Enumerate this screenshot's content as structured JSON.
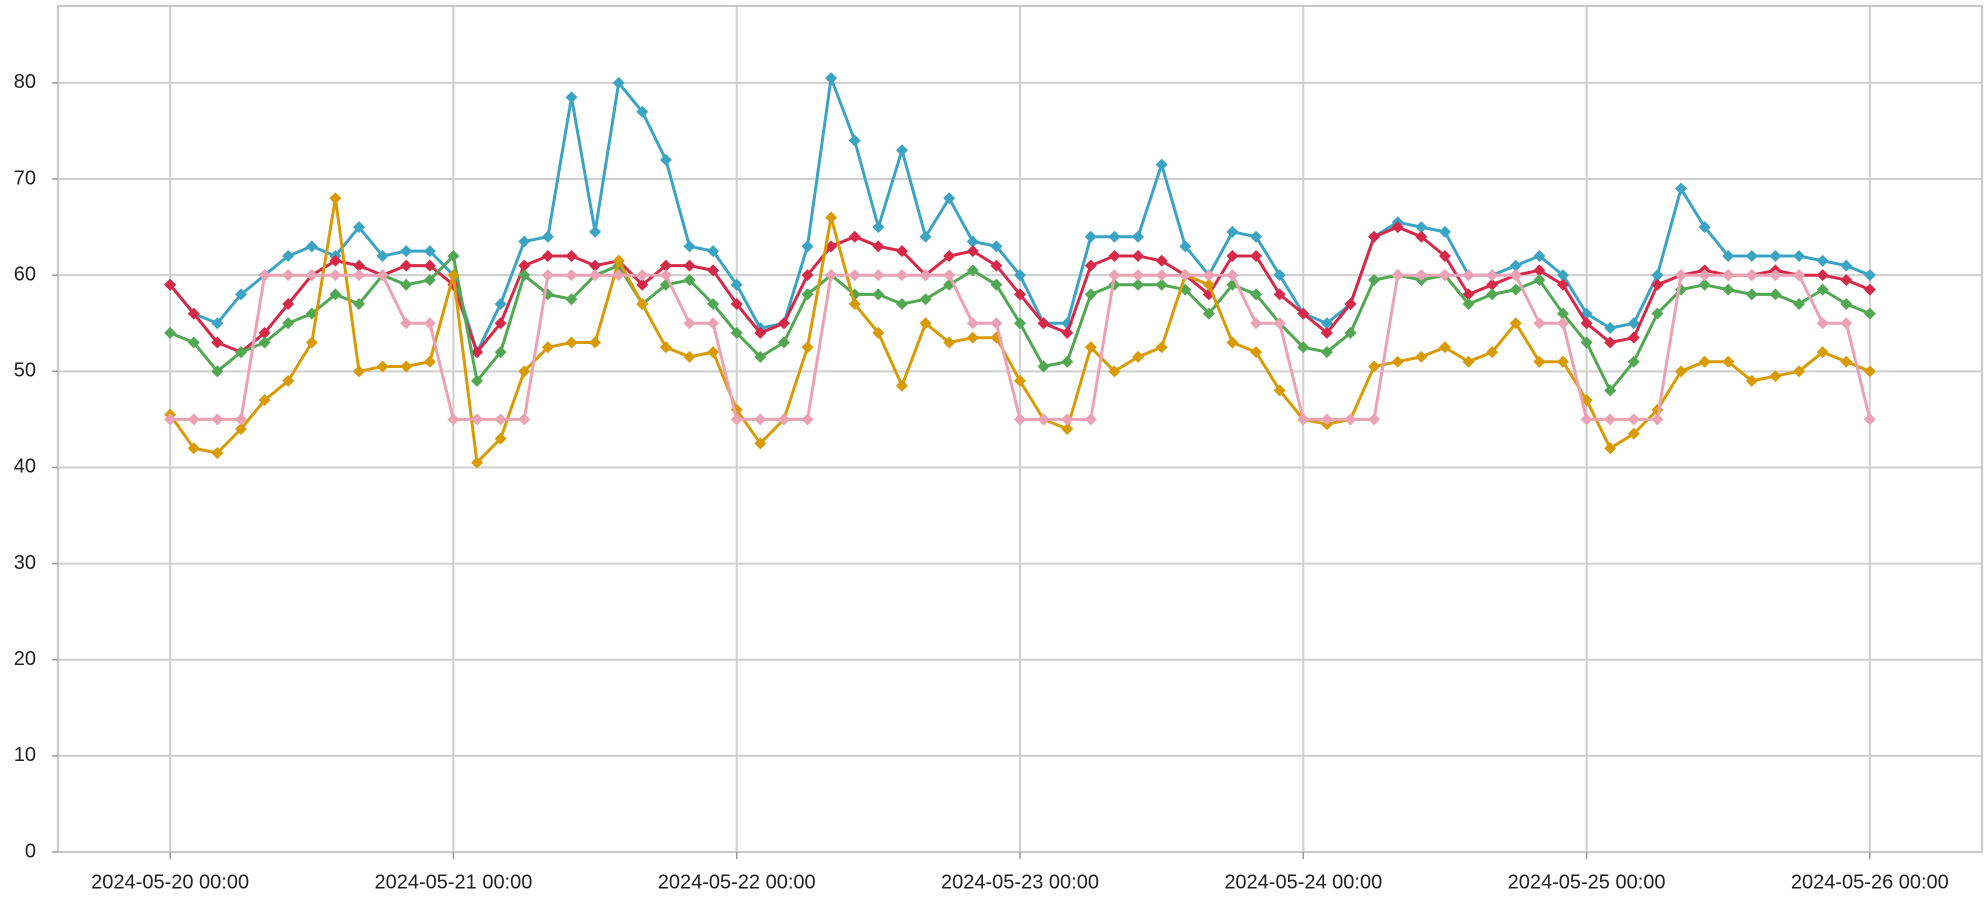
{
  "chart_data": {
    "type": "line",
    "x": [
      "2024-05-20 00:00",
      "2024-05-20 02:00",
      "2024-05-20 04:00",
      "2024-05-20 06:00",
      "2024-05-20 08:00",
      "2024-05-20 10:00",
      "2024-05-20 12:00",
      "2024-05-20 14:00",
      "2024-05-20 16:00",
      "2024-05-20 18:00",
      "2024-05-20 20:00",
      "2024-05-20 22:00",
      "2024-05-21 00:00",
      "2024-05-21 02:00",
      "2024-05-21 04:00",
      "2024-05-21 06:00",
      "2024-05-21 08:00",
      "2024-05-21 10:00",
      "2024-05-21 12:00",
      "2024-05-21 14:00",
      "2024-05-21 16:00",
      "2024-05-21 18:00",
      "2024-05-21 20:00",
      "2024-05-21 22:00",
      "2024-05-22 00:00",
      "2024-05-22 02:00",
      "2024-05-22 04:00",
      "2024-05-22 06:00",
      "2024-05-22 08:00",
      "2024-05-22 10:00",
      "2024-05-22 12:00",
      "2024-05-22 14:00",
      "2024-05-22 16:00",
      "2024-05-22 18:00",
      "2024-05-22 20:00",
      "2024-05-22 22:00",
      "2024-05-23 00:00",
      "2024-05-23 02:00",
      "2024-05-23 04:00",
      "2024-05-23 06:00",
      "2024-05-23 08:00",
      "2024-05-23 10:00",
      "2024-05-23 12:00",
      "2024-05-23 14:00",
      "2024-05-23 16:00",
      "2024-05-23 18:00",
      "2024-05-23 20:00",
      "2024-05-23 22:00",
      "2024-05-24 00:00",
      "2024-05-24 02:00",
      "2024-05-24 04:00",
      "2024-05-24 06:00",
      "2024-05-24 08:00",
      "2024-05-24 10:00",
      "2024-05-24 12:00",
      "2024-05-24 14:00",
      "2024-05-24 16:00",
      "2024-05-24 18:00",
      "2024-05-24 20:00",
      "2024-05-24 22:00",
      "2024-05-25 00:00",
      "2024-05-25 02:00",
      "2024-05-25 04:00",
      "2024-05-25 06:00",
      "2024-05-25 08:00",
      "2024-05-25 10:00",
      "2024-05-25 12:00",
      "2024-05-25 14:00",
      "2024-05-25 16:00",
      "2024-05-25 18:00",
      "2024-05-25 20:00",
      "2024-05-25 22:00",
      "2024-05-26 00:00"
    ],
    "series": [
      {
        "color": "#3ba3c3",
        "values": [
          59,
          56,
          55,
          58,
          60,
          62,
          63,
          62,
          65,
          62,
          62.5,
          62.5,
          60,
          52,
          57,
          63.5,
          64,
          78.5,
          64.5,
          80,
          77,
          72,
          63,
          62.5,
          59,
          54.5,
          55,
          63,
          80.5,
          74,
          65,
          73,
          64,
          68,
          63.5,
          63,
          60,
          55,
          55,
          64,
          64,
          64,
          71.5,
          63,
          60,
          64.5,
          64,
          60,
          56,
          55,
          57,
          64,
          65.5,
          65,
          64.5,
          60,
          60,
          61,
          62,
          60,
          56,
          54.5,
          55,
          60,
          69,
          65,
          62,
          62,
          62,
          62,
          61.5,
          61,
          60
        ]
      },
      {
        "color": "#d6294a",
        "values": [
          59,
          56,
          53,
          52,
          54,
          57,
          60,
          61.5,
          61,
          60,
          61,
          61,
          59,
          52,
          55,
          61,
          62,
          62,
          61,
          61.5,
          59,
          61,
          61,
          60.5,
          57,
          54,
          55,
          60,
          63,
          64,
          63,
          62.5,
          60,
          62,
          62.5,
          61,
          58,
          55,
          54,
          61,
          62,
          62,
          61.5,
          60,
          58,
          62,
          62,
          58,
          56,
          54,
          57,
          64,
          65,
          64,
          62,
          58,
          59,
          60,
          60.5,
          59,
          55,
          53,
          53.5,
          59,
          60,
          60.5,
          60,
          60,
          60.5,
          60,
          60,
          59.5,
          58.5
        ]
      },
      {
        "color": "#52a852",
        "values": [
          54,
          53,
          50,
          52,
          53,
          55,
          56,
          58,
          57,
          60,
          59,
          59.5,
          62,
          49,
          52,
          60,
          58,
          57.5,
          60,
          61,
          57,
          59,
          59.5,
          57,
          54,
          51.5,
          53,
          58,
          60,
          58,
          58,
          57,
          57.5,
          59,
          60.5,
          59,
          55,
          50.5,
          51,
          58,
          59,
          59,
          59,
          58.5,
          56,
          59,
          58,
          55,
          52.5,
          52,
          54,
          59.5,
          60,
          59.5,
          60,
          57,
          58,
          58.5,
          59.5,
          56,
          53,
          48,
          51,
          56,
          58.5,
          59,
          58.5,
          58,
          58,
          57,
          58.5,
          57,
          56
        ]
      },
      {
        "color": "#d89b06",
        "values": [
          45.5,
          42,
          41.5,
          44,
          47,
          49,
          53,
          68,
          50,
          50.5,
          50.5,
          51,
          60,
          40.5,
          43,
          50,
          52.5,
          53,
          53,
          61.5,
          57,
          52.5,
          51.5,
          52,
          46,
          42.5,
          45,
          52.5,
          66,
          57,
          54,
          48.5,
          55,
          53,
          53.5,
          53.5,
          49,
          45,
          44,
          52.5,
          50,
          51.5,
          52.5,
          60,
          59,
          53,
          52,
          48,
          45,
          44.5,
          45,
          50.5,
          51,
          51.5,
          52.5,
          51,
          52,
          55,
          51,
          51,
          47,
          42,
          43.5,
          46,
          50,
          51,
          51,
          49,
          49.5,
          50,
          52,
          51,
          50
        ]
      },
      {
        "color": "#eaa2b4",
        "values": [
          45,
          45,
          45,
          45,
          60,
          60,
          60,
          60,
          60,
          60,
          55,
          55,
          45,
          45,
          45,
          45,
          60,
          60,
          60,
          60,
          60,
          60,
          55,
          55,
          45,
          45,
          45,
          45,
          60,
          60,
          60,
          60,
          60,
          60,
          55,
          55,
          45,
          45,
          45,
          45,
          60,
          60,
          60,
          60,
          60,
          60,
          55,
          55,
          45,
          45,
          45,
          45,
          60,
          60,
          60,
          60,
          60,
          60,
          55,
          55,
          45,
          45,
          45,
          45,
          60,
          60,
          60,
          60,
          60,
          60,
          55,
          55,
          45
        ]
      }
    ],
    "xlim": [
      "2024-05-19 14:30",
      "2024-05-26 09:30"
    ],
    "xticks": [
      "2024-05-20 00:00",
      "2024-05-21 00:00",
      "2024-05-22 00:00",
      "2024-05-23 00:00",
      "2024-05-24 00:00",
      "2024-05-25 00:00",
      "2024-05-26 00:00"
    ],
    "ylim": [
      0,
      88
    ],
    "yticks": [
      0,
      10,
      20,
      30,
      40,
      50,
      60,
      70,
      80
    ],
    "grid": true
  }
}
